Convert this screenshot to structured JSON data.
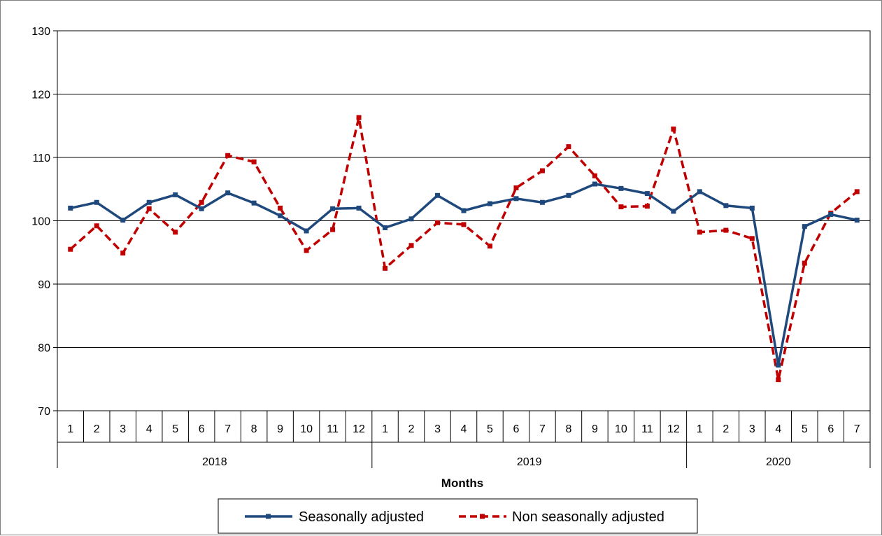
{
  "chart_data": {
    "type": "line",
    "title": "",
    "xlabel": "Months",
    "ylabel": "",
    "ylim": [
      70,
      130
    ],
    "yticks": [
      "70",
      "80",
      "90",
      "100",
      "110",
      "120",
      "130"
    ],
    "grid": true,
    "legend_position": "bottom",
    "groups": [
      {
        "label": "2018",
        "months": [
          "1",
          "2",
          "3",
          "4",
          "5",
          "6",
          "7",
          "8",
          "9",
          "10",
          "11",
          "12"
        ]
      },
      {
        "label": "2019",
        "months": [
          "1",
          "2",
          "3",
          "4",
          "5",
          "6",
          "7",
          "8",
          "9",
          "10",
          "11",
          "12"
        ]
      },
      {
        "label": "2020",
        "months": [
          "1",
          "2",
          "3",
          "4",
          "5",
          "6",
          "7"
        ]
      }
    ],
    "series": [
      {
        "name": "Seasonally adjusted",
        "color": "#1F497D",
        "style": "solid",
        "values": [
          102.0,
          102.9,
          100.1,
          102.9,
          104.1,
          101.9,
          104.4,
          102.8,
          100.8,
          98.4,
          101.9,
          102.0,
          98.9,
          100.3,
          104.0,
          101.6,
          102.7,
          103.5,
          102.9,
          104.0,
          105.8,
          105.1,
          104.3,
          101.5,
          104.6,
          102.4,
          102.0,
          77.2,
          99.1,
          101.0,
          100.1
        ]
      },
      {
        "name": "Non seasonally adjusted",
        "color": "#C00000",
        "style": "dashed",
        "values": [
          95.5,
          99.2,
          94.9,
          101.9,
          98.2,
          102.9,
          110.3,
          109.3,
          102.0,
          95.3,
          98.6,
          116.3,
          92.5,
          96.1,
          99.7,
          99.4,
          96.0,
          105.2,
          107.9,
          111.7,
          107.1,
          102.2,
          102.3,
          114.5,
          98.2,
          98.5,
          97.2,
          74.9,
          93.3,
          101.2,
          104.6
        ]
      }
    ]
  }
}
